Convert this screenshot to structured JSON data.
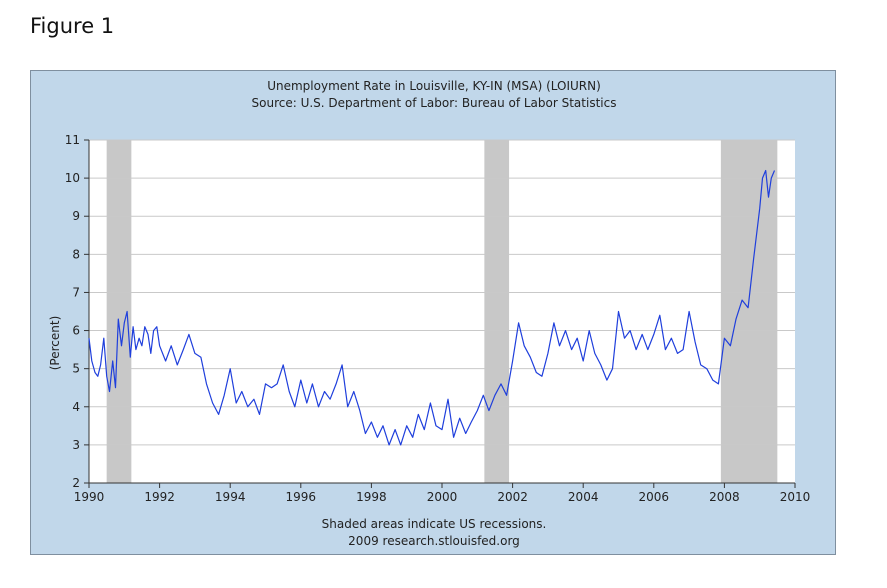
{
  "figure_label": "Figure 1",
  "chart_data": {
    "type": "line",
    "title": "Unemployment Rate in Louisville, KY-IN (MSA) (LOIURN)",
    "subtitle": "Source: U.S. Department of Labor: Bureau of Labor Statistics",
    "xlabel": "",
    "ylabel": "(Percent)",
    "xlim": [
      1990,
      2010
    ],
    "ylim": [
      2,
      11
    ],
    "x_ticks": [
      "1990",
      "1992",
      "1994",
      "1996",
      "1998",
      "2000",
      "2002",
      "2004",
      "2006",
      "2008",
      "2010"
    ],
    "y_ticks": [
      "2",
      "3",
      "4",
      "5",
      "6",
      "7",
      "8",
      "9",
      "10",
      "11"
    ],
    "grid": true,
    "footnote_1": "Shaded areas indicate US recessions.",
    "footnote_2": "2009 research.stlouisfed.org",
    "line_color": "#1f3fdc",
    "recession_color": "#c8c8c8",
    "recessions": [
      [
        1990.5,
        1991.2
      ],
      [
        2001.2,
        2001.9
      ],
      [
        2007.9,
        2009.5
      ]
    ],
    "series": [
      {
        "x": [
          1990.0,
          1990.08,
          1990.17,
          1990.25,
          1990.33,
          1990.42,
          1990.5,
          1990.58,
          1990.67,
          1990.75,
          1990.83,
          1990.92,
          1991.0,
          1991.08,
          1991.17,
          1991.25,
          1991.33,
          1991.42,
          1991.5,
          1991.58,
          1991.67,
          1991.75,
          1991.83,
          1991.92,
          1992.0,
          1992.17,
          1992.33,
          1992.5,
          1992.67,
          1992.83,
          1993.0,
          1993.17,
          1993.33,
          1993.5,
          1993.67,
          1993.83,
          1994.0,
          1994.17,
          1994.33,
          1994.5,
          1994.67,
          1994.83,
          1995.0,
          1995.17,
          1995.33,
          1995.5,
          1995.67,
          1995.83,
          1996.0,
          1996.17,
          1996.33,
          1996.5,
          1996.67,
          1996.83,
          1997.0,
          1997.17,
          1997.33,
          1997.5,
          1997.67,
          1997.83,
          1998.0,
          1998.17,
          1998.33,
          1998.5,
          1998.67,
          1998.83,
          1999.0,
          1999.17,
          1999.33,
          1999.5,
          1999.67,
          1999.83,
          2000.0,
          2000.17,
          2000.33,
          2000.5,
          2000.67,
          2000.83,
          2001.0,
          2001.17,
          2001.33,
          2001.5,
          2001.67,
          2001.83,
          2002.0,
          2002.17,
          2002.33,
          2002.5,
          2002.67,
          2002.83,
          2003.0,
          2003.17,
          2003.33,
          2003.5,
          2003.67,
          2003.83,
          2004.0,
          2004.17,
          2004.33,
          2004.5,
          2004.67,
          2004.83,
          2005.0,
          2005.17,
          2005.33,
          2005.5,
          2005.67,
          2005.83,
          2006.0,
          2006.17,
          2006.33,
          2006.5,
          2006.67,
          2006.83,
          2007.0,
          2007.17,
          2007.33,
          2007.5,
          2007.67,
          2007.83,
          2008.0,
          2008.17,
          2008.33,
          2008.5,
          2008.67,
          2008.83,
          2009.0,
          2009.08,
          2009.17,
          2009.25,
          2009.33,
          2009.42
        ],
        "values": [
          5.8,
          5.2,
          4.9,
          4.8,
          5.1,
          5.8,
          4.8,
          4.4,
          5.2,
          4.5,
          6.3,
          5.6,
          6.2,
          6.5,
          5.3,
          6.1,
          5.5,
          5.8,
          5.6,
          6.1,
          5.9,
          5.4,
          6.0,
          6.1,
          5.6,
          5.2,
          5.6,
          5.1,
          5.5,
          5.9,
          5.4,
          5.3,
          4.6,
          4.1,
          3.8,
          4.3,
          5.0,
          4.1,
          4.4,
          4.0,
          4.2,
          3.8,
          4.6,
          4.5,
          4.6,
          5.1,
          4.4,
          4.0,
          4.7,
          4.1,
          4.6,
          4.0,
          4.4,
          4.2,
          4.6,
          5.1,
          4.0,
          4.4,
          3.9,
          3.3,
          3.6,
          3.2,
          3.5,
          3.0,
          3.4,
          3.0,
          3.5,
          3.2,
          3.8,
          3.4,
          4.1,
          3.5,
          3.4,
          4.2,
          3.2,
          3.7,
          3.3,
          3.6,
          3.9,
          4.3,
          3.9,
          4.3,
          4.6,
          4.3,
          5.2,
          6.2,
          5.6,
          5.3,
          4.9,
          4.8,
          5.4,
          6.2,
          5.6,
          6.0,
          5.5,
          5.8,
          5.2,
          6.0,
          5.4,
          5.1,
          4.7,
          5.0,
          6.5,
          5.8,
          6.0,
          5.5,
          5.9,
          5.5,
          5.9,
          6.4,
          5.5,
          5.8,
          5.4,
          5.5,
          6.5,
          5.7,
          5.1,
          5.0,
          4.7,
          4.6,
          5.8,
          5.6,
          6.3,
          6.8,
          6.6,
          7.9,
          9.2,
          10.0,
          10.2,
          9.5,
          10.0,
          10.2
        ]
      }
    ]
  }
}
